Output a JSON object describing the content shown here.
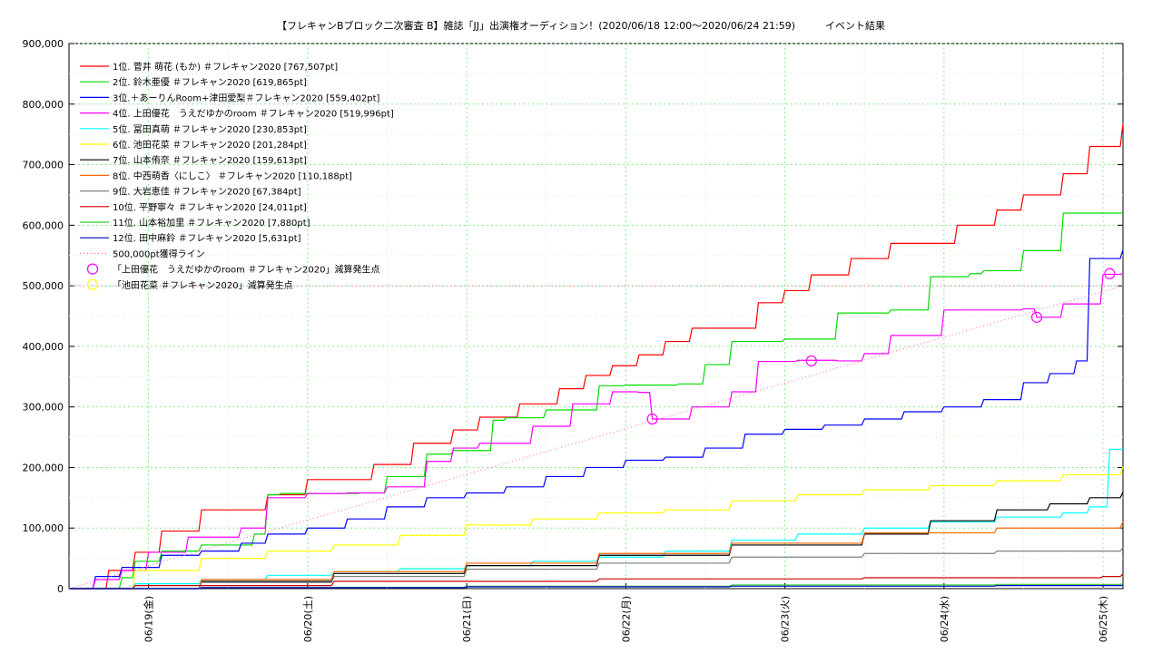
{
  "chart_data": {
    "type": "line",
    "title": "【フレキャンBブロック二次審査 B】雑誌「JJ」出演権オーディション！(2020/06/18 12:00〜2020/06/24 21:59)　　　イベント結果",
    "xlabel": "",
    "ylabel": "",
    "ylim": [
      0,
      900000
    ],
    "xlim": [
      "2020/06/18 12:00",
      "2020/06/25 03:00"
    ],
    "grid": true,
    "legend_position": "top-left",
    "y_ticks": [
      "0",
      "100,000",
      "200,000",
      "300,000",
      "400,000",
      "500,000",
      "600,000",
      "700,000",
      "800,000",
      "900,000"
    ],
    "x_ticks": [
      "06/19(金)",
      "06/20(土)",
      "06/21(日)",
      "06/22(月)",
      "06/23(火)",
      "06/24(水)",
      "06/25(木)"
    ],
    "x_hours": [
      "2020/06/18 12:00",
      0,
      24,
      48,
      72,
      96,
      120,
      144,
      159
    ],
    "series": [
      {
        "name": "1位. 菅井 萌花 (もか) ＃フレキャン2020 [767,507pt]",
        "color": "#ff0000",
        "x": [
          0,
          6,
          10,
          14,
          20,
          30,
          36,
          46,
          52,
          58,
          62,
          68,
          74,
          78,
          82,
          86,
          90,
          94,
          104,
          108,
          112,
          118,
          124,
          134,
          140,
          144,
          150,
          154,
          159
        ],
        "y": [
          0,
          30000,
          60000,
          95000,
          130000,
          155000,
          180000,
          205000,
          240000,
          262000,
          283000,
          305000,
          330000,
          352000,
          368000,
          386000,
          408000,
          430000,
          472000,
          492000,
          518000,
          545000,
          570000,
          600000,
          625000,
          650000,
          685000,
          730000,
          767507
        ]
      },
      {
        "name": "2位. 鈴木亜優 ＃フレキャン2020 [619,865pt]",
        "color": "#00dd00",
        "x": [
          0,
          8,
          10,
          14,
          20,
          28,
          30,
          32,
          44,
          48,
          54,
          58,
          64,
          66,
          72,
          80,
          84,
          92,
          96,
          100,
          108,
          116,
          124,
          130,
          136,
          138,
          144,
          150,
          159
        ],
        "y": [
          0,
          18000,
          45000,
          62000,
          72000,
          90000,
          155000,
          157000,
          158000,
          185000,
          222000,
          228000,
          278000,
          282000,
          295000,
          335000,
          336000,
          338000,
          370000,
          408000,
          412000,
          455000,
          460000,
          515000,
          520000,
          525000,
          558000,
          620000,
          619865
        ]
      },
      {
        "name": "3位.＋あーりんRoom+津田愛梨＃フレキャン2020 [559,402pt]",
        "color": "#0000ff",
        "x": [
          0,
          4,
          8,
          14,
          20,
          26,
          30,
          36,
          42,
          48,
          54,
          60,
          66,
          72,
          78,
          84,
          90,
          96,
          102,
          108,
          114,
          120,
          126,
          132,
          138,
          144,
          148,
          152,
          154,
          159
        ],
        "y": [
          0,
          20000,
          35000,
          55000,
          62000,
          75000,
          90000,
          100000,
          115000,
          135000,
          150000,
          158000,
          168000,
          185000,
          200000,
          212000,
          217000,
          232000,
          255000,
          263000,
          270000,
          280000,
          292000,
          300000,
          312000,
          340000,
          355000,
          376000,
          545000,
          559402
        ]
      },
      {
        "name": "4位. 上田優花　うえだゆかのroom ＃フレキャン2020 [519,996pt]",
        "color": "#ff00ff",
        "x": [
          0,
          4,
          8,
          12,
          18,
          26,
          30,
          36,
          42,
          48,
          54,
          58,
          62,
          70,
          76,
          82,
          86,
          88,
          94,
          100,
          104,
          110,
          116,
          120,
          124,
          132,
          144,
          146,
          150,
          156,
          159
        ],
        "y": [
          0,
          15000,
          30000,
          60000,
          85000,
          100000,
          150000,
          157000,
          158000,
          168000,
          210000,
          232000,
          240000,
          268000,
          305000,
          325000,
          324000,
          280000,
          300000,
          325000,
          375000,
          377000,
          376000,
          388000,
          418000,
          460000,
          462000,
          448000,
          470000,
          519000,
          519996
        ]
      },
      {
        "name": "5位. 冨田真萌 ＃フレキャン2020 [230,853pt]",
        "color": "#00ffff",
        "x": [
          0,
          10,
          20,
          30,
          40,
          50,
          60,
          70,
          80,
          90,
          100,
          110,
          120,
          130,
          140,
          150,
          154,
          157,
          159
        ],
        "y": [
          0,
          8000,
          15000,
          22000,
          28000,
          33000,
          38000,
          45000,
          52000,
          62000,
          80000,
          90000,
          100000,
          110000,
          118000,
          125000,
          135000,
          230000,
          230853
        ]
      },
      {
        "name": "6位. 池田花菜 ＃フレキャン2020 [201,284pt]",
        "color": "#ffff00",
        "x": [
          0,
          10,
          20,
          30,
          40,
          50,
          60,
          70,
          80,
          90,
          100,
          110,
          120,
          130,
          140,
          150,
          159
        ],
        "y": [
          0,
          30000,
          50000,
          62000,
          72000,
          88000,
          105000,
          115000,
          125000,
          130000,
          145000,
          155000,
          163000,
          170000,
          178000,
          188000,
          201284
        ]
      },
      {
        "name": "7位. 山本侑奈 ＃フレキャン2020 [159,613pt]",
        "color": "#000000",
        "x": [
          0,
          20,
          40,
          60,
          80,
          100,
          120,
          130,
          140,
          148,
          154,
          159
        ],
        "y": [
          0,
          12000,
          25000,
          38000,
          55000,
          72000,
          90000,
          112000,
          130000,
          140000,
          150000,
          159613
        ]
      },
      {
        "name": "8位. 中西萌香〈にしこ〉 ＃フレキャン2020 [110,188pt]",
        "color": "#ff6600",
        "x": [
          0,
          20,
          40,
          60,
          80,
          100,
          120,
          140,
          159
        ],
        "y": [
          0,
          15000,
          28000,
          42000,
          58000,
          75000,
          92000,
          100000,
          110188
        ]
      },
      {
        "name": "9位. 大岩恵佳 ＃フレキャン2020 [67,384pt]",
        "color": "#808080",
        "x": [
          0,
          20,
          40,
          60,
          80,
          100,
          120,
          140,
          159
        ],
        "y": [
          0,
          10000,
          20000,
          32000,
          42000,
          52000,
          58000,
          62000,
          67384
        ]
      },
      {
        "name": "10位. 平野寧々 ＃フレキャン2020 [24,011pt]",
        "color": "#cc0000",
        "x": [
          0,
          10,
          40,
          80,
          120,
          156,
          159
        ],
        "y": [
          0,
          5000,
          12000,
          16000,
          18000,
          20000,
          24011
        ]
      },
      {
        "name": "11位. 山本裕加里 ＃フレキャン2020 [7,880pt]",
        "color": "#33cc33",
        "x": [
          0,
          20,
          60,
          100,
          140,
          159
        ],
        "y": [
          0,
          2000,
          4000,
          6000,
          7000,
          7880
        ]
      },
      {
        "name": "12位. 田中麻鈴 ＃フレキャン2020 [5,631pt]",
        "color": "#0000cc",
        "x": [
          0,
          20,
          60,
          100,
          140,
          159
        ],
        "y": [
          0,
          1500,
          3000,
          4000,
          5000,
          5631
        ]
      },
      {
        "name": "500,000pt獲得ライン",
        "color": "#ff66aa",
        "x": [
          0,
          159
        ],
        "y": [
          0,
          500000
        ],
        "style": "dotted"
      }
    ],
    "markers": [
      {
        "name": "「上田優花　うえだゆかのroom ＃フレキャン2020」減算発生点",
        "color": "#ff00ff",
        "points": [
          {
            "x": 88,
            "y": 280000
          },
          {
            "x": 112,
            "y": 376000
          },
          {
            "x": 146,
            "y": 448000
          },
          {
            "x": 157,
            "y": 520000
          }
        ]
      },
      {
        "name": "「池田花菜 ＃フレキャン2020」減算発生点",
        "color": "#ffff00",
        "points": []
      }
    ],
    "reference_lines": [
      {
        "y": 500000,
        "color": "#ff66aa"
      }
    ]
  }
}
